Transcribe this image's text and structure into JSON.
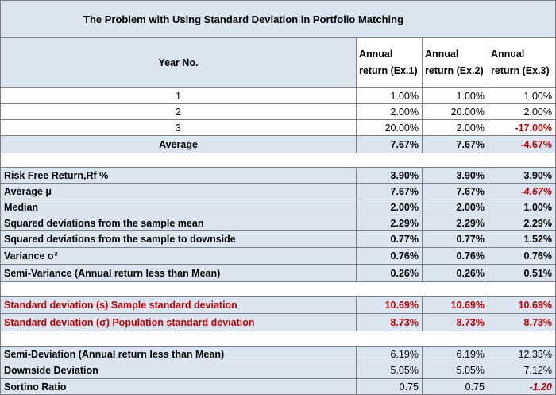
{
  "title": "The Problem with Using Standard Deviation in Portfolio Matching",
  "header": {
    "year_label": "Year No.",
    "ex1": "Annual return (Ex.1)",
    "ex2": "Annual return (Ex.2)",
    "ex3": "Annual return (Ex.3)"
  },
  "years": [
    {
      "year": "1",
      "ex1": "1.00%",
      "ex2": "1.00%",
      "ex3": "1.00%"
    },
    {
      "year": "2",
      "ex1": "2.00%",
      "ex2": "20.00%",
      "ex3": "2.00%"
    },
    {
      "year": "3",
      "ex1": "20.00%",
      "ex2": "2.00%",
      "ex3": "-17.00%"
    }
  ],
  "average": {
    "label": "Average",
    "ex1": "7.67%",
    "ex2": "7.67%",
    "ex3": "-4.67%"
  },
  "stats": [
    {
      "label": "Risk Free Return,Rf %",
      "ex1": "3.90%",
      "ex2": "3.90%",
      "ex3": "3.90%"
    },
    {
      "label": "Average μ",
      "ex1": "7.67%",
      "ex2": "7.67%",
      "ex3": "-4.67%"
    },
    {
      "label": "Median",
      "ex1": "2.00%",
      "ex2": "2.00%",
      "ex3": "1.00%"
    },
    {
      "label": "Squared deviations from the sample mean",
      "ex1": "2.29%",
      "ex2": "2.29%",
      "ex3": "2.29%"
    },
    {
      "label": "Squared deviations from the sample to downside",
      "ex1": "0.77%",
      "ex2": "0.77%",
      "ex3": "1.52%"
    },
    {
      "label": "Variance σ²",
      "ex1": "0.76%",
      "ex2": "0.76%",
      "ex3": "0.76%"
    },
    {
      "label": "Semi-Variance (Annual return less than Mean)",
      "ex1": "0.26%",
      "ex2": "0.26%",
      "ex3": "0.51%"
    }
  ],
  "stdev": [
    {
      "label": "Standard deviation (s) Sample standard deviation",
      "ex1": "10.69%",
      "ex2": "10.69%",
      "ex3": "10.69%"
    },
    {
      "label": "Standard deviation (σ) Population standard deviation",
      "ex1": "8.73%",
      "ex2": "8.73%",
      "ex3": "8.73%"
    }
  ],
  "downside": [
    {
      "label": "Semi-Deviation (Annual return less than Mean)",
      "ex1": "6.19%",
      "ex2": "6.19%",
      "ex3": "12.33%"
    },
    {
      "label": "Downside Deviation",
      "ex1": "5.05%",
      "ex2": "5.05%",
      "ex3": "7.12%"
    },
    {
      "label": "Sortino Ratio",
      "ex1": "0.75",
      "ex2": "0.75",
      "ex3": "-1.20"
    }
  ],
  "colors": {
    "header_bg": "#dbe5f1",
    "negative": "#c00000",
    "grid": "#7f7f7f"
  }
}
